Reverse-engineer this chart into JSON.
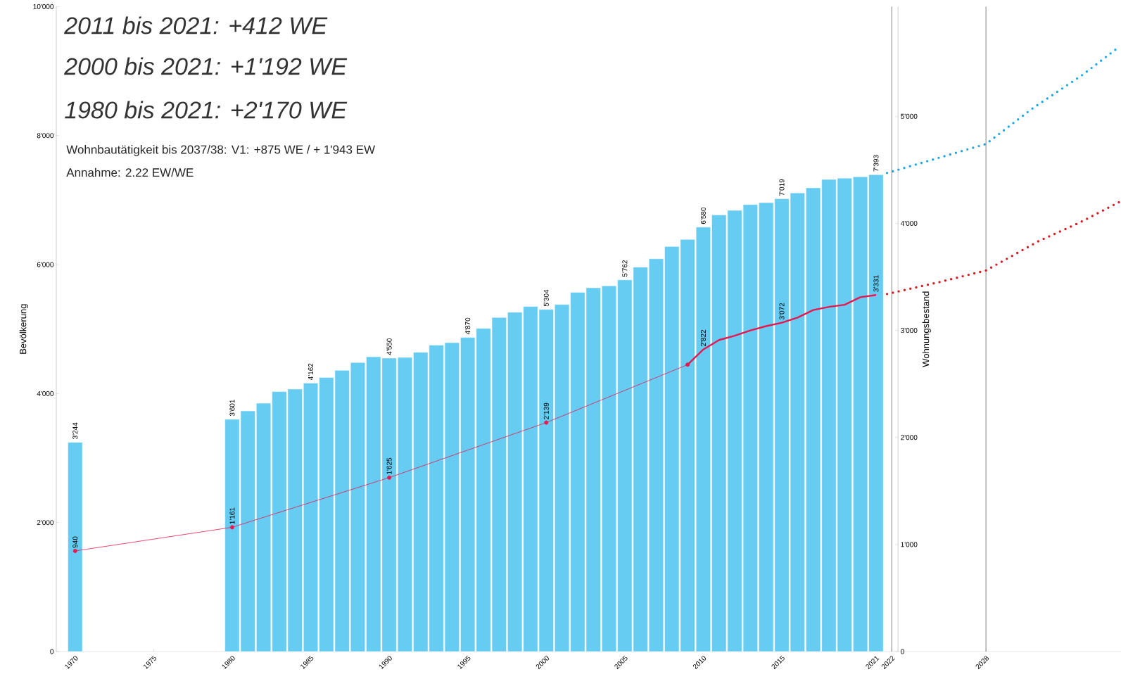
{
  "chart_data": {
    "type": "bar",
    "ylabel": "Bevölkerung",
    "y2label": "Wohnungsbestand",
    "annotations": [
      "2011 bis 2021: +412 WE",
      "2000 bis 2021: +1'192 WE",
      "1980 bis 2021: +2'170 WE",
      "Wohnbautätigkeit bis 2037/38: V1: +875 WE / + 1'943 EW",
      "Annahme: 2.22 EW/WE"
    ],
    "xlim": [
      1968.8,
      2036.6
    ],
    "xticks": [
      1970,
      1975,
      1980,
      1985,
      1990,
      1995,
      2000,
      2005,
      2010,
      2015,
      2021,
      2022,
      2028
    ],
    "ylim": [
      0,
      10000
    ],
    "yticks": [
      0,
      {
        "value": 2000,
        "label": "2'000"
      },
      {
        "value": 4000,
        "label": "4'000"
      },
      {
        "value": 6000,
        "label": "6'000"
      },
      {
        "value": 8000,
        "label": "8'000"
      },
      {
        "value": 10000,
        "label": "10'000"
      }
    ],
    "y2lim": [
      0,
      6025
    ],
    "y2ticks": [
      0,
      {
        "value": 1000,
        "label": "1'000"
      },
      {
        "value": 2000,
        "label": "2'000"
      },
      {
        "value": 3000,
        "label": "3'000"
      },
      {
        "value": 4000,
        "label": "4'000"
      },
      {
        "value": 5000,
        "label": "5'000"
      }
    ],
    "series": [
      {
        "color": "#66ccf2",
        "x": [
          1970,
          1980,
          1981,
          1982,
          1983,
          1984,
          1985,
          1986,
          1987,
          1988,
          1989,
          1990,
          1991,
          1992,
          1993,
          1994,
          1995,
          1996,
          1997,
          1998,
          1999,
          2000,
          2001,
          2002,
          2003,
          2004,
          2005,
          2006,
          2007,
          2008,
          2009,
          2010,
          2011,
          2012,
          2013,
          2014,
          2015,
          2016,
          2017,
          2018,
          2019,
          2020,
          2021
        ],
        "values": [
          3244,
          3601,
          3730,
          3850,
          4030,
          4070,
          4162,
          4250,
          4360,
          4480,
          4570,
          4550,
          4560,
          4640,
          4750,
          4790,
          4870,
          5010,
          5180,
          5260,
          5350,
          5304,
          5380,
          5570,
          5640,
          5670,
          5762,
          5960,
          6090,
          6280,
          6390,
          6580,
          6770,
          6840,
          6930,
          6960,
          7019,
          7110,
          7190,
          7320,
          7340,
          7360,
          7393
        ],
        "value_labels": [
          "3'244",
          "3'601",
          null,
          null,
          null,
          null,
          "4'162",
          null,
          null,
          null,
          null,
          "4'550",
          null,
          null,
          null,
          null,
          "4'870",
          null,
          null,
          null,
          null,
          "5'304",
          null,
          null,
          null,
          null,
          "5'762",
          null,
          null,
          null,
          null,
          "6'580",
          null,
          null,
          null,
          null,
          "7'019",
          null,
          null,
          null,
          null,
          null,
          "7'393"
        ]
      },
      {
        "type": "line",
        "color": "#1aa7e8",
        "line_style": "dotted",
        "marker": "none",
        "x": [
          2021.7,
          2025.2,
          2028,
          2030.9,
          2034.2,
          2036.5
        ],
        "values": [
          7420,
          7670,
          7870,
          8410,
          8950,
          9380
        ]
      },
      {
        "type": "line",
        "axis": "y2",
        "color": "#e8174f",
        "marker": "circle",
        "x": [
          1970,
          1980,
          1990,
          2000,
          2009
        ],
        "values": [
          940,
          1161,
          1625,
          2139,
          2680
        ],
        "value_labels": [
          "940",
          "1'161",
          "1'625",
          "2'139",
          null
        ]
      },
      {
        "type": "line",
        "axis": "y2",
        "color": "#e8174f",
        "marker": "none",
        "x": [
          2009,
          2010,
          2011,
          2012,
          2013,
          2014,
          2015,
          2016,
          2017,
          2018,
          2019,
          2020,
          2021
        ],
        "values": [
          2680,
          2822,
          2910,
          2950,
          3000,
          3040,
          3072,
          3120,
          3190,
          3220,
          3240,
          3310,
          3331
        ],
        "value_labels": [
          null,
          "2'822",
          null,
          null,
          null,
          null,
          "3'072",
          null,
          null,
          null,
          null,
          null,
          "3'331"
        ]
      },
      {
        "type": "line",
        "axis": "y2",
        "color": "#d71920",
        "line_style": "dotted",
        "marker": "none",
        "x": [
          2021.7,
          2025,
          2028,
          2031.3,
          2034,
          2036.5
        ],
        "values": [
          3340,
          3450,
          3560,
          3830,
          4010,
          4200
        ]
      }
    ],
    "ref_lines": [
      {
        "axis": "x",
        "value": 2022,
        "color": "#666666"
      },
      {
        "axis": "x",
        "value": 2028,
        "color": "#666666"
      }
    ]
  }
}
